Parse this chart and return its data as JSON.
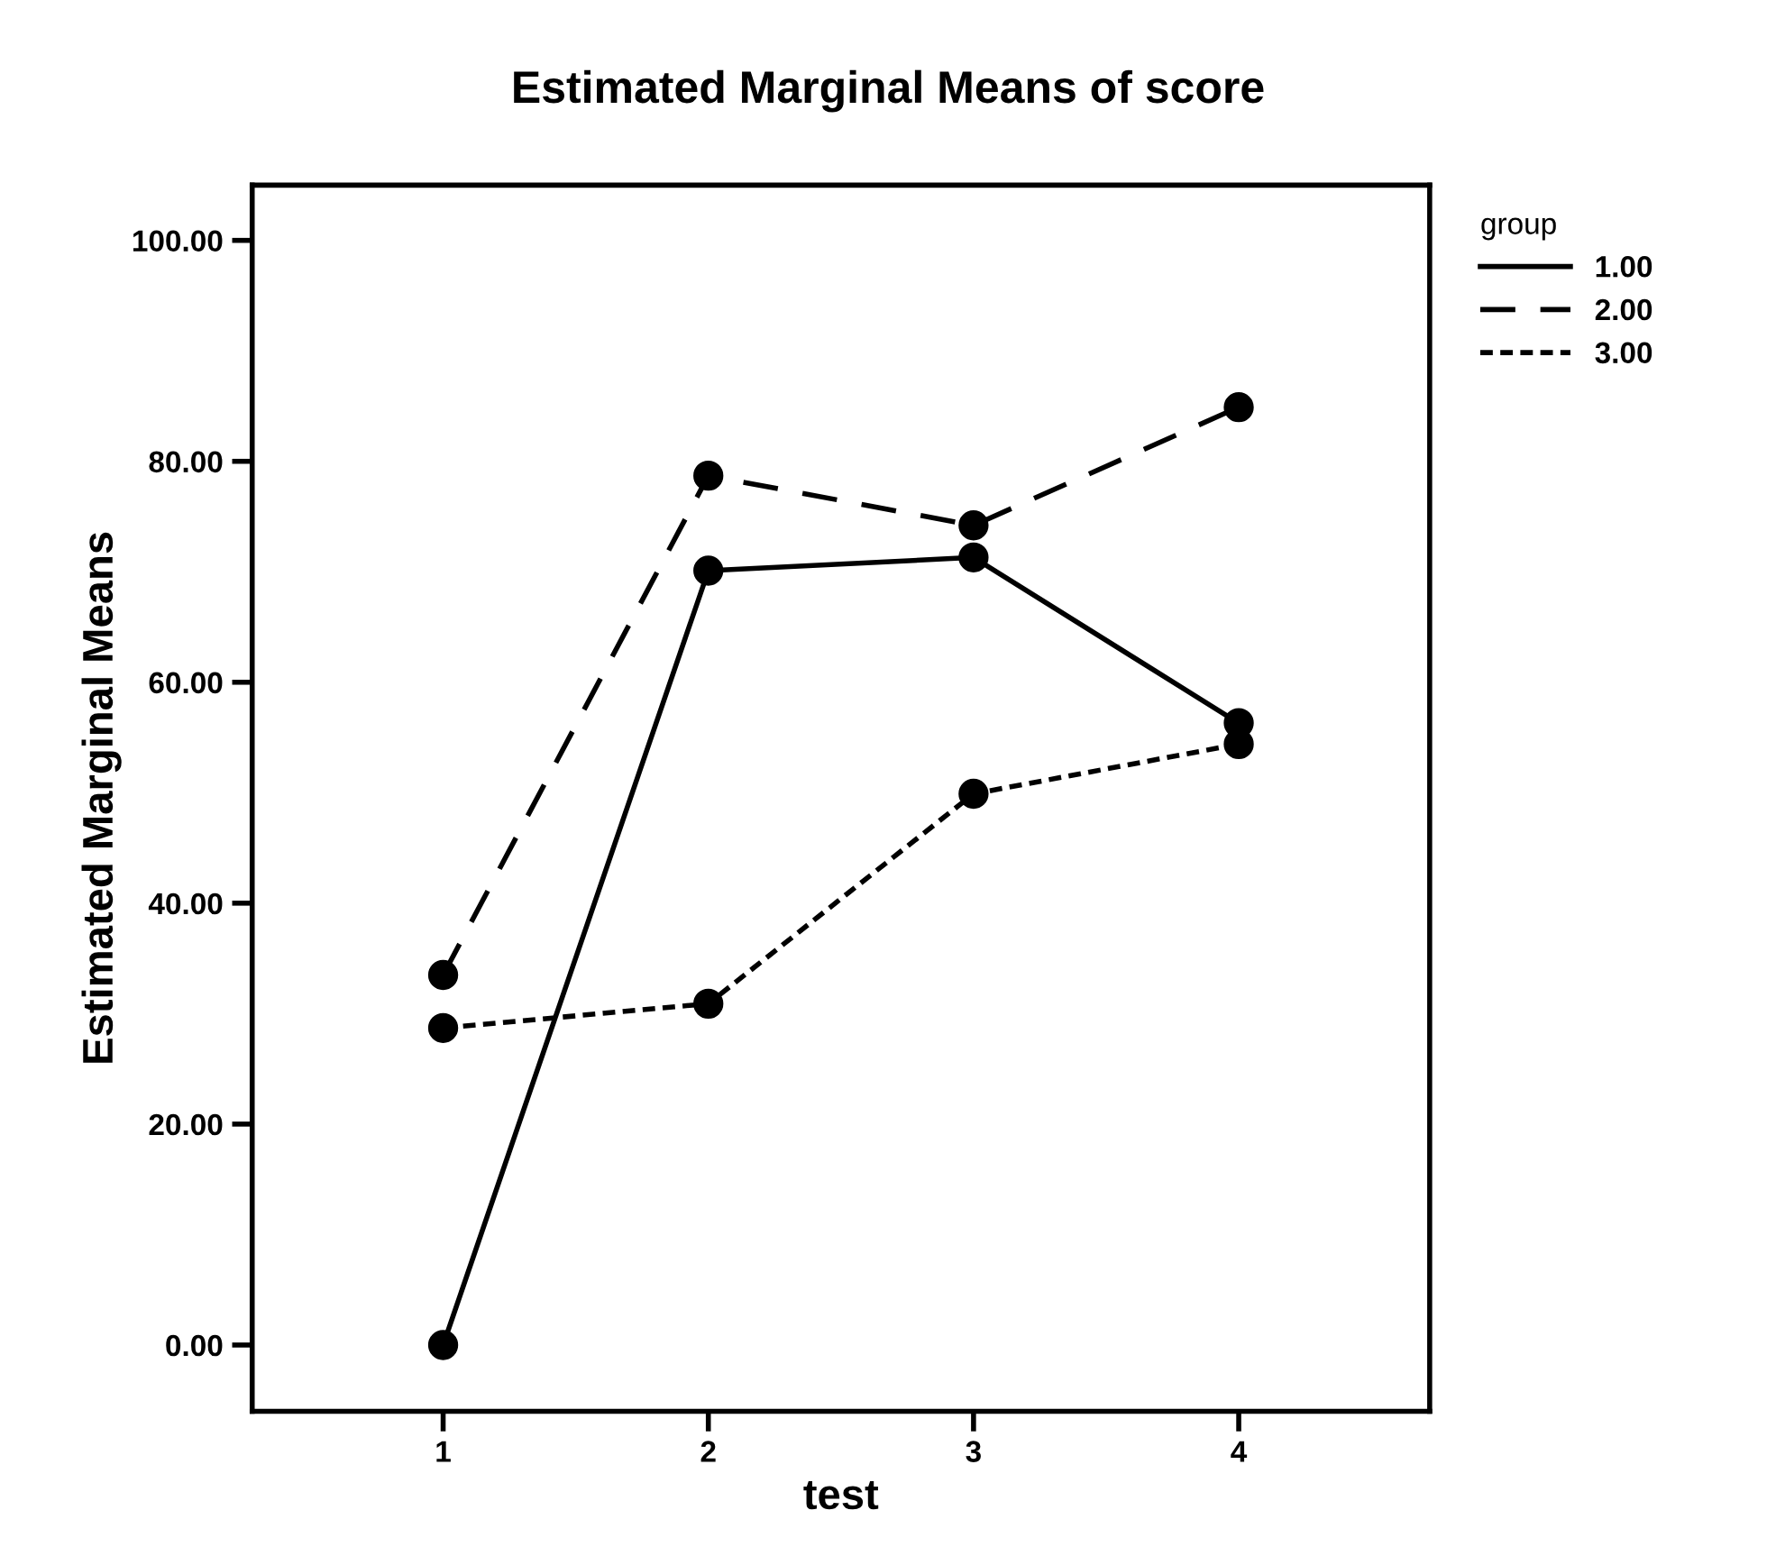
{
  "chart_data": {
    "type": "line",
    "title": "Estimated Marginal Means of score",
    "xlabel": "test",
    "ylabel": "Estimated Marginal Means",
    "legend_title": "group",
    "legend": "top right",
    "marker": "circle",
    "categories": [
      "1",
      "2",
      "3",
      "4"
    ],
    "ylim": [
      -6,
      105
    ],
    "yticks": [
      {
        "value": 0,
        "label": "0.00"
      },
      {
        "value": 20,
        "label": "20.00"
      },
      {
        "value": 40,
        "label": "40.00"
      },
      {
        "value": 60,
        "label": "60.00"
      },
      {
        "value": 80,
        "label": "80.00"
      },
      {
        "value": 100,
        "label": "100.00"
      }
    ],
    "grid": false,
    "series": [
      {
        "name": "1.00",
        "color": "#000000",
        "line_style": "solid",
        "values": [
          0,
          70.1,
          71.3,
          56.3
        ]
      },
      {
        "name": "2.00",
        "color": "#000000",
        "line_style": "dashed",
        "values": [
          33.5,
          78.7,
          74.2,
          84.9
        ]
      },
      {
        "name": "3.00",
        "color": "#000000",
        "line_style": "dotted",
        "values": [
          28.7,
          30.9,
          49.9,
          54.4
        ]
      }
    ]
  }
}
